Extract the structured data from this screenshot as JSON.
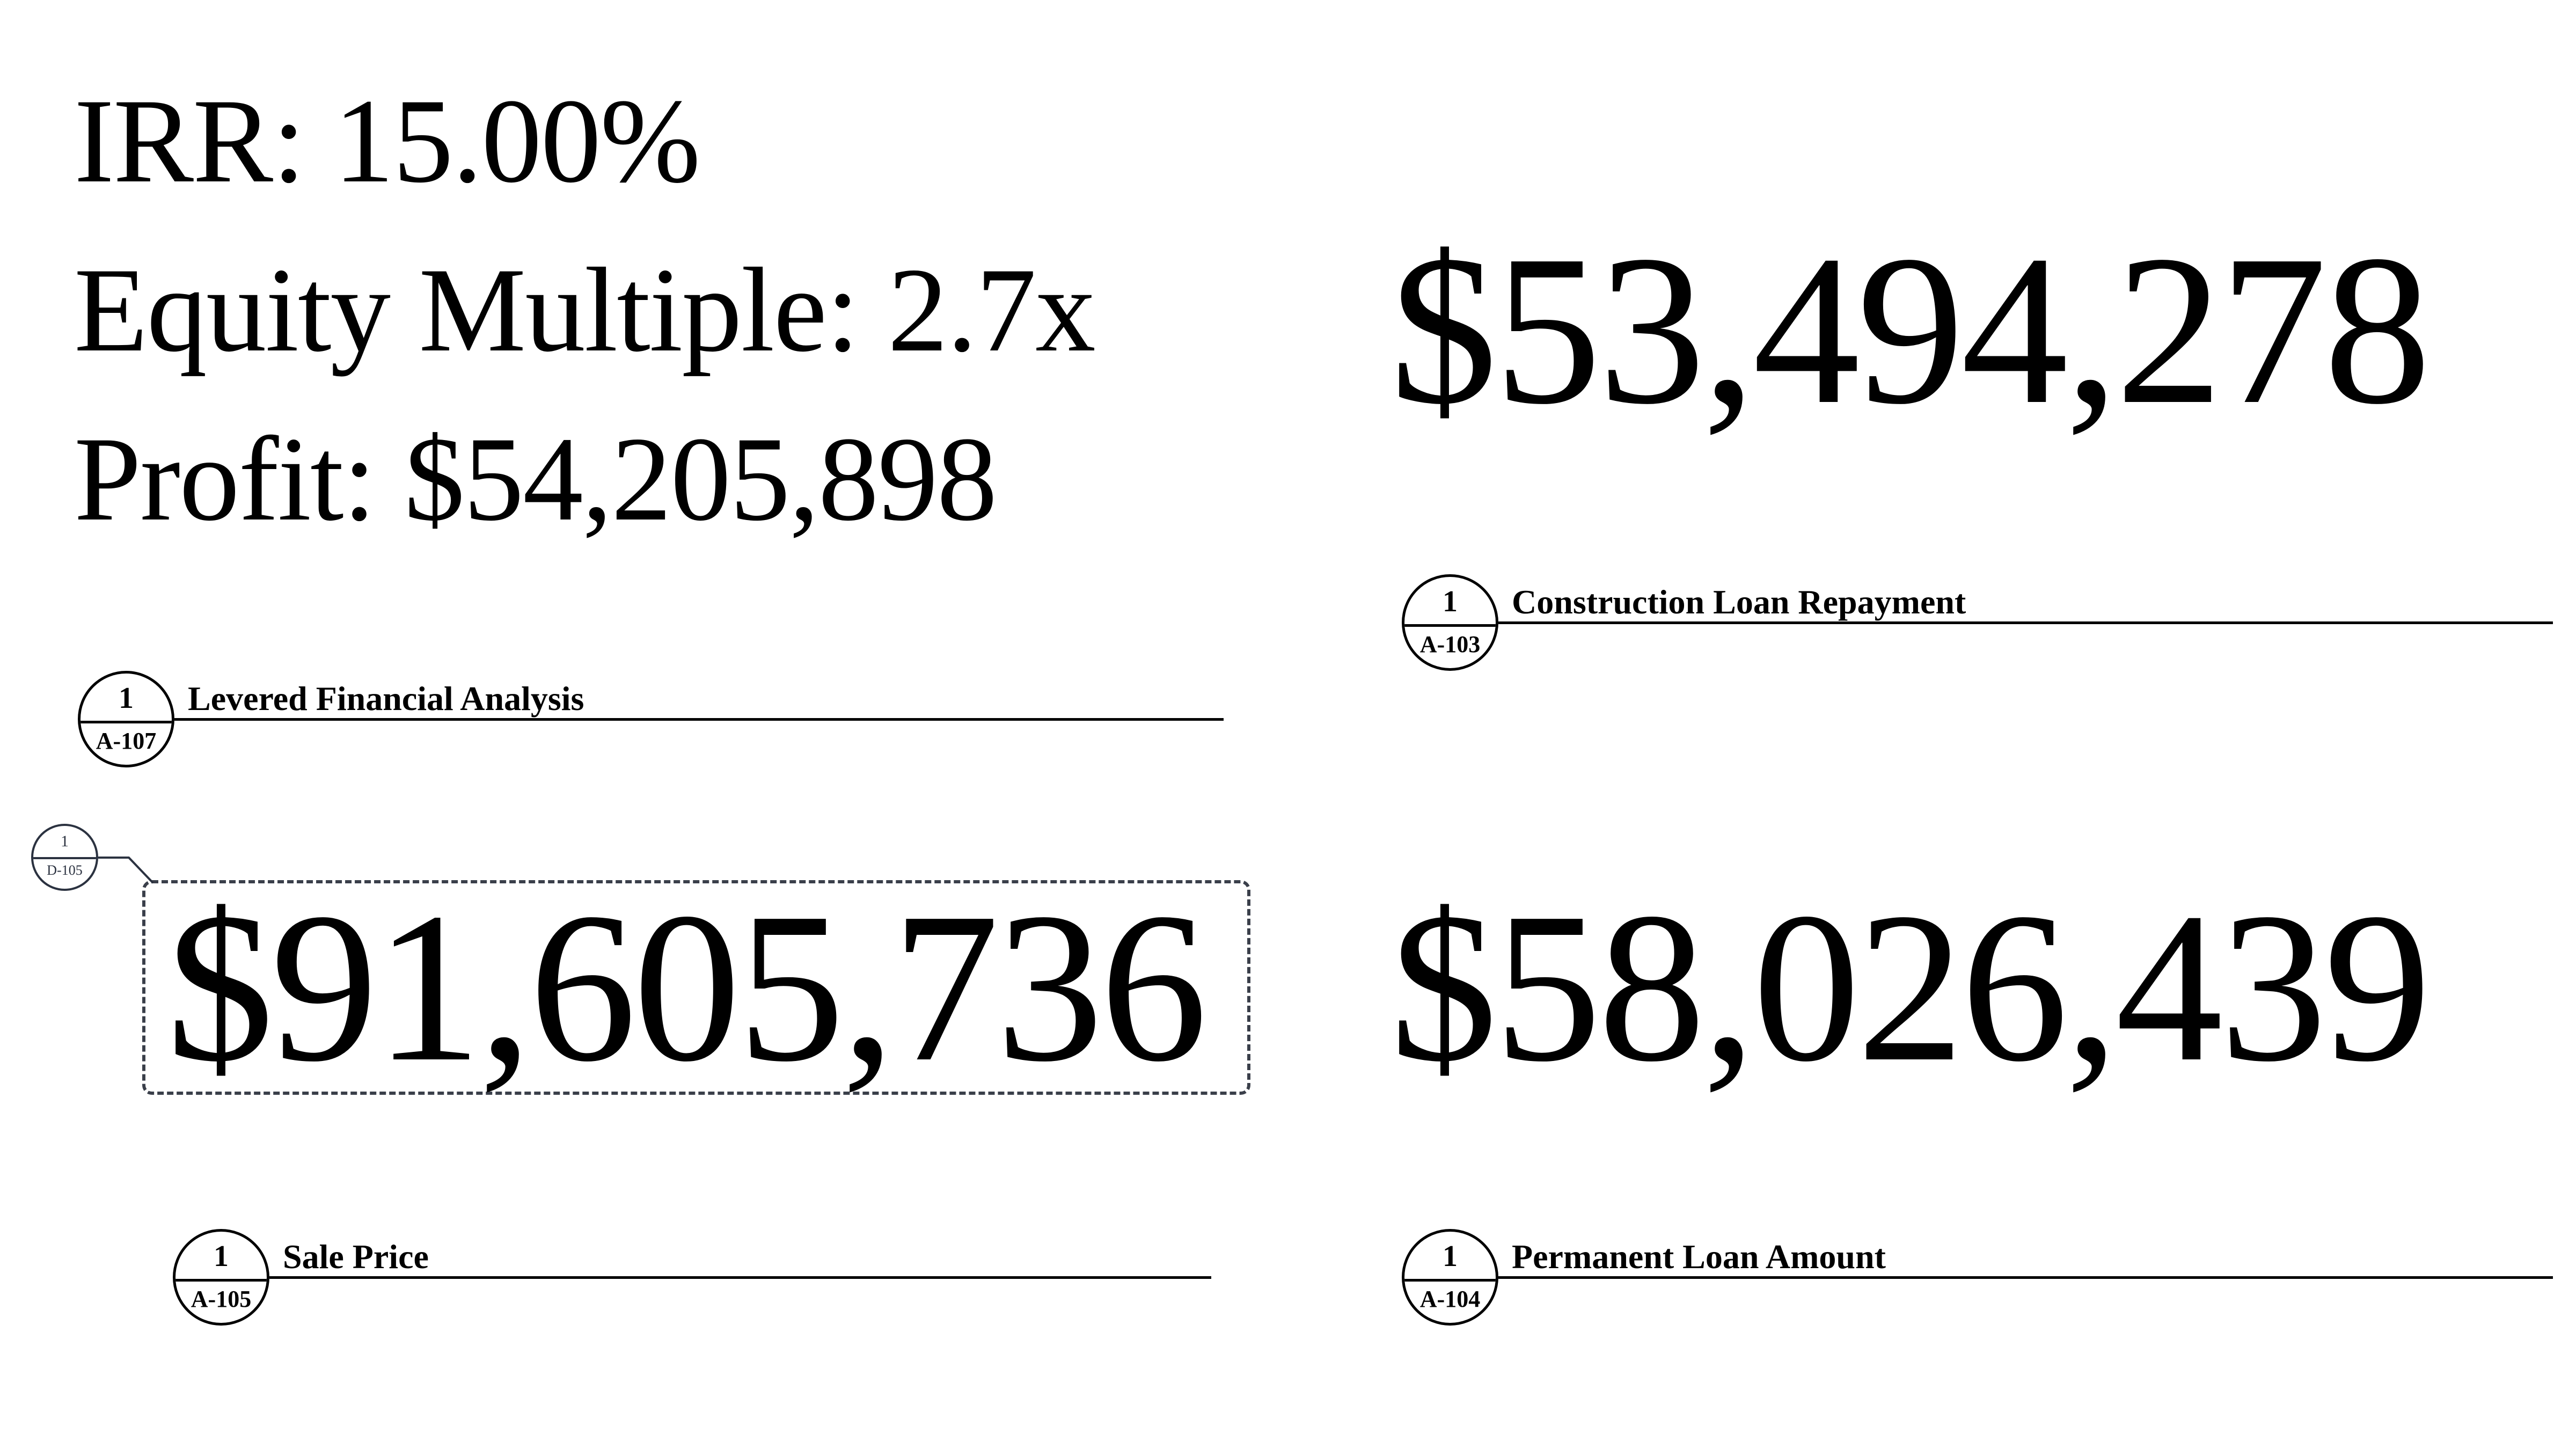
{
  "metrics": {
    "irr": "IRR: 15.00%",
    "equity_multiple": "Equity Multiple: 2.7x",
    "profit": "Profit: $54,205,898"
  },
  "views": {
    "levered": {
      "number": "1",
      "sheet": "A-107",
      "title": "Levered Financial Analysis"
    },
    "construction": {
      "value": "$53,494,278",
      "number": "1",
      "sheet": "A-103",
      "title": "Construction Loan Repayment"
    },
    "sale": {
      "value": "$91,605,736",
      "number": "1",
      "sheet": "A-105",
      "title": "Sale Price"
    },
    "permanent": {
      "value": "$58,026,439",
      "number": "1",
      "sheet": "A-104",
      "title": "Permanent Loan Amount"
    }
  },
  "detail_tag": {
    "number": "1",
    "sheet": "D-105"
  },
  "colors": {
    "text": "#000000",
    "revision_cloud": "#3a3f4a",
    "tag": "#2b3240",
    "background": "#ffffff"
  }
}
